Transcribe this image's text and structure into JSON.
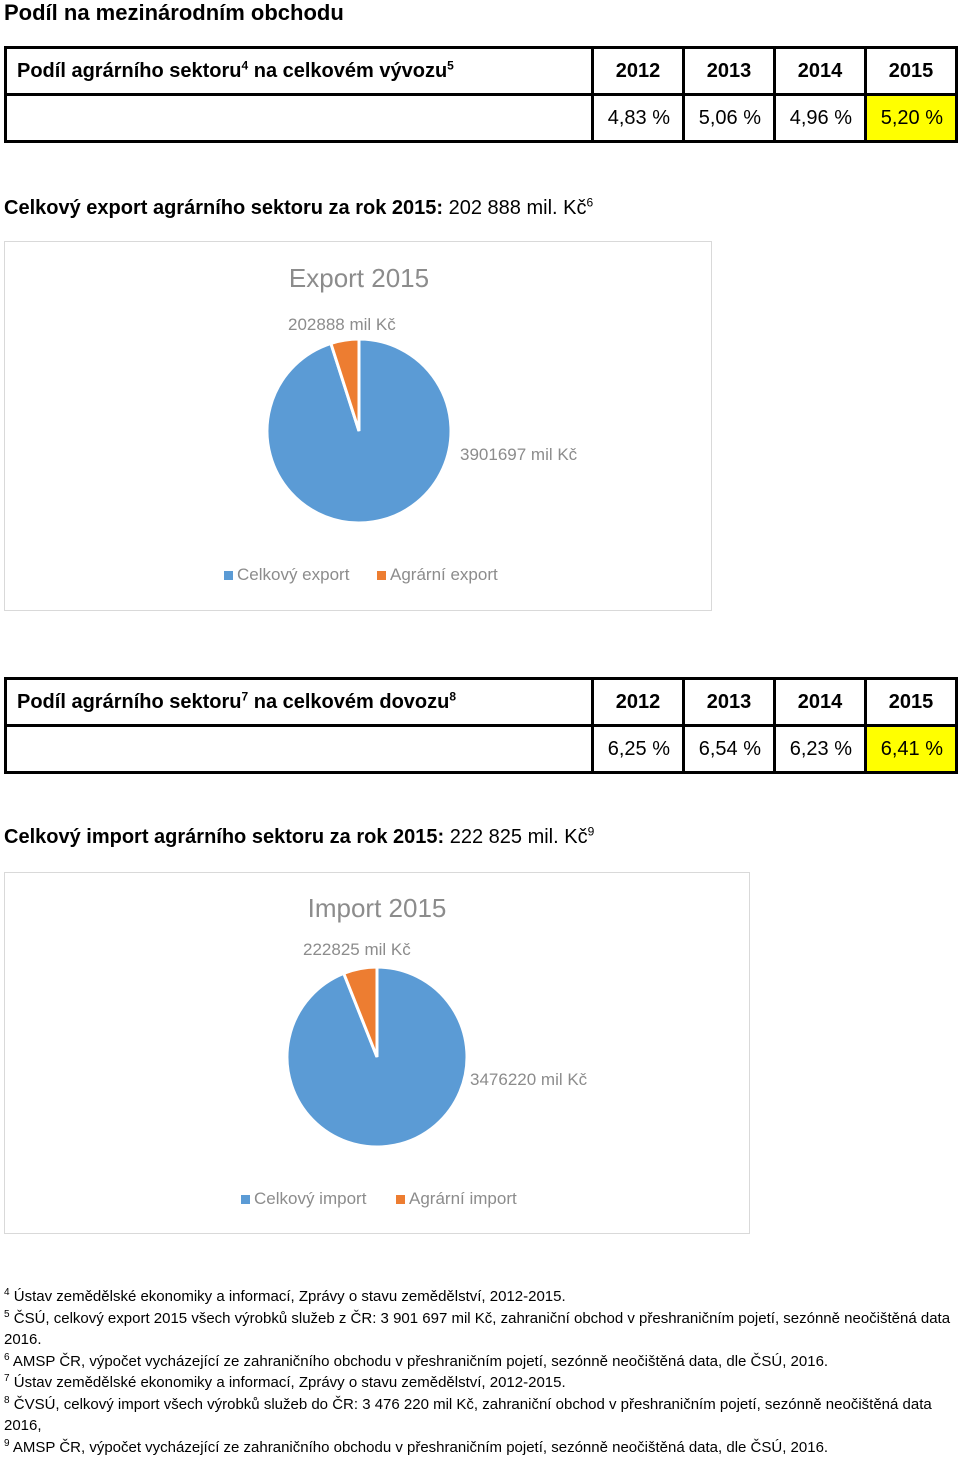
{
  "page_title": "Podíl na mezinárodním obchodu",
  "export_table": {
    "label": "Podíl agrárního sektoru",
    "label_sup1": "4",
    "label_mid": " na celkovém vývozu",
    "label_sup2": "5",
    "years": [
      "2012",
      "2013",
      "2014",
      "2015"
    ],
    "values": [
      "4,83 %",
      "5,06 %",
      "4,96 %",
      "5,20 %"
    ]
  },
  "export_total": {
    "bold_text": "Celkový export agrárního sektoru za rok 2015:",
    "value_text": " 202 888 mil. Kč",
    "sup": "6"
  },
  "import_table": {
    "label": "Podíl agrárního sektoru",
    "label_sup1": "7",
    "label_mid": " na celkovém dovozu",
    "label_sup2": "8",
    "years": [
      "2012",
      "2013",
      "2014",
      "2015"
    ],
    "values": [
      "6,25 %",
      "6,54 %",
      "6,23 %",
      "6,41 %"
    ]
  },
  "import_total": {
    "bold_text": "Celkový import agrárního sektoru za rok 2015:",
    "value_text": " 222 825 mil. Kč",
    "sup": "9"
  },
  "colors": {
    "total": "#5b9bd5",
    "agrarian": "#ed7d31",
    "highlight": "#ffff00",
    "muted_text": "#8c8c8c"
  },
  "chart_data": [
    {
      "type": "pie",
      "title": "Export 2015",
      "series": [
        {
          "name": "Celkový export",
          "value": 3901697,
          "label": "3901697 mil Kč"
        },
        {
          "name": "Agrární export",
          "value": 202888,
          "label": "202888 mil Kč"
        }
      ],
      "legend_position": "bottom"
    },
    {
      "type": "pie",
      "title": "Import 2015",
      "series": [
        {
          "name": "Celkový import",
          "value": 3476220,
          "label": "3476220 mil Kč"
        },
        {
          "name": "Agrární import",
          "value": 222825,
          "label": "222825 mil Kč"
        }
      ],
      "legend_position": "bottom"
    }
  ],
  "footnotes": [
    {
      "num": "4",
      "text": "Ústav zemědělské ekonomiky a informací, Zprávy o stavu zemědělství, 2012-2015."
    },
    {
      "num": "5",
      "text": "ČSÚ, celkový export 2015 všech výrobků služeb z ČR: 3 901 697 mil Kč, zahraniční obchod v přeshraničním pojetí, sezónně neočištěná data 2016."
    },
    {
      "num": "6",
      "text": "AMSP ČR, výpočet vycházející ze zahraničního obchodu v přeshraničním pojetí, sezónně neočištěná data, dle ČSÚ, 2016."
    },
    {
      "num": "7",
      "text": "Ústav zemědělské ekonomiky a informací, Zprávy o stavu zemědělství, 2012-2015."
    },
    {
      "num": "8",
      "text": "ČVSÚ, celkový import všech výrobků služeb do ČR: 3 476 220  mil Kč, zahraniční obchod v přeshraničním pojetí, sezónně neočištěná data 2016,"
    },
    {
      "num": "9",
      "text": "AMSP ČR, výpočet vycházející ze zahraničního obchodu v přeshraničním pojetí, sezónně neočištěná data, dle ČSÚ, 2016."
    }
  ]
}
